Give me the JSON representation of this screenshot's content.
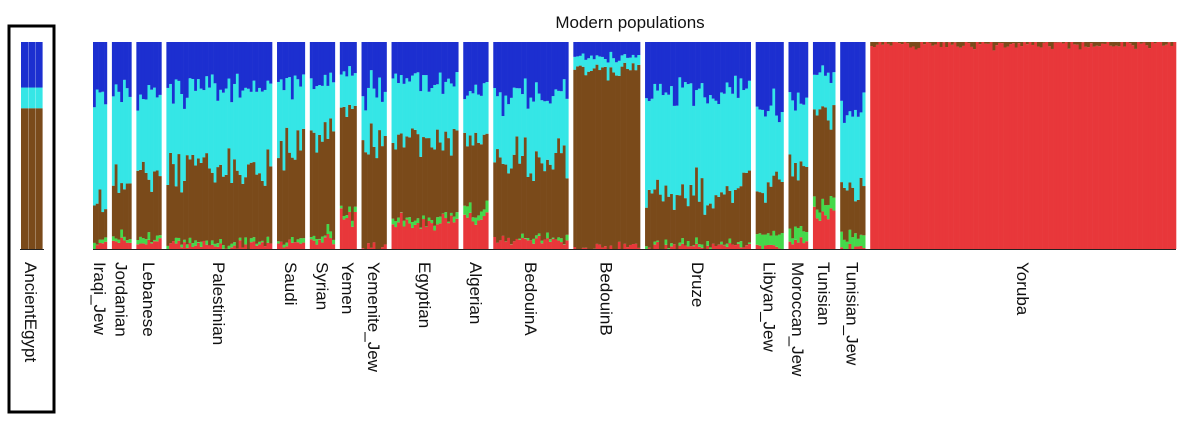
{
  "chart_data": {
    "type": "bar",
    "subtype": "stacked-admixture",
    "title": "",
    "subtitle": "",
    "xlabel": "",
    "ylabel": "",
    "group_caption": "Modern populations",
    "ylim": [
      0,
      1
    ],
    "grid": false,
    "legend": "none",
    "highlight_box": "AncientEgypt",
    "component_colors": [
      "#e8373a",
      "#44d84a",
      "#7a4a1a",
      "#35e6e6",
      "#1c2fd0"
    ],
    "ancient": {
      "name": "AncientEgypt",
      "bars": 3,
      "values": [
        0,
        0,
        0.68,
        0.1,
        0.22
      ]
    },
    "categories": [
      "Iraqi_Jew",
      "Jordanian",
      "Lebanese",
      "Palestinian",
      "Saudi",
      "Syrian",
      "Yemen",
      "Yemenite_Jew",
      "Egyptian",
      "Algerian",
      "BedouinA",
      "BedouinB",
      "Druze",
      "Libyan_Jew",
      "Moroccan_Jew",
      "Tunisian",
      "Tunisian_Jew",
      "Yoruba"
    ],
    "bar_counts": [
      5,
      7,
      9,
      38,
      10,
      9,
      6,
      9,
      24,
      9,
      27,
      24,
      38,
      10,
      7,
      8,
      9,
      110
    ],
    "series": [
      {
        "component": 1,
        "values": [
          0.02,
          0.04,
          0.03,
          0.02,
          0.02,
          0.04,
          0.15,
          0.01,
          0.12,
          0.15,
          0.04,
          0.01,
          0.01,
          0.01,
          0.03,
          0.18,
          0.01,
          0.99
        ]
      },
      {
        "component": 2,
        "values": [
          0.01,
          0.02,
          0.02,
          0.01,
          0.01,
          0.02,
          0.02,
          0.0,
          0.02,
          0.04,
          0.01,
          0.0,
          0.01,
          0.06,
          0.05,
          0.05,
          0.05,
          0.0
        ]
      },
      {
        "component": 3,
        "values": [
          0.19,
          0.28,
          0.32,
          0.35,
          0.45,
          0.46,
          0.5,
          0.53,
          0.38,
          0.36,
          0.4,
          0.86,
          0.25,
          0.25,
          0.27,
          0.42,
          0.23,
          0.01
        ]
      },
      {
        "component": 4,
        "values": [
          0.53,
          0.41,
          0.36,
          0.4,
          0.32,
          0.28,
          0.17,
          0.24,
          0.29,
          0.23,
          0.3,
          0.06,
          0.48,
          0.36,
          0.34,
          0.21,
          0.39,
          0.0
        ]
      },
      {
        "component": 5,
        "values": [
          0.25,
          0.25,
          0.27,
          0.22,
          0.2,
          0.2,
          0.16,
          0.22,
          0.19,
          0.22,
          0.25,
          0.07,
          0.25,
          0.32,
          0.31,
          0.14,
          0.32,
          0.0
        ]
      }
    ]
  }
}
